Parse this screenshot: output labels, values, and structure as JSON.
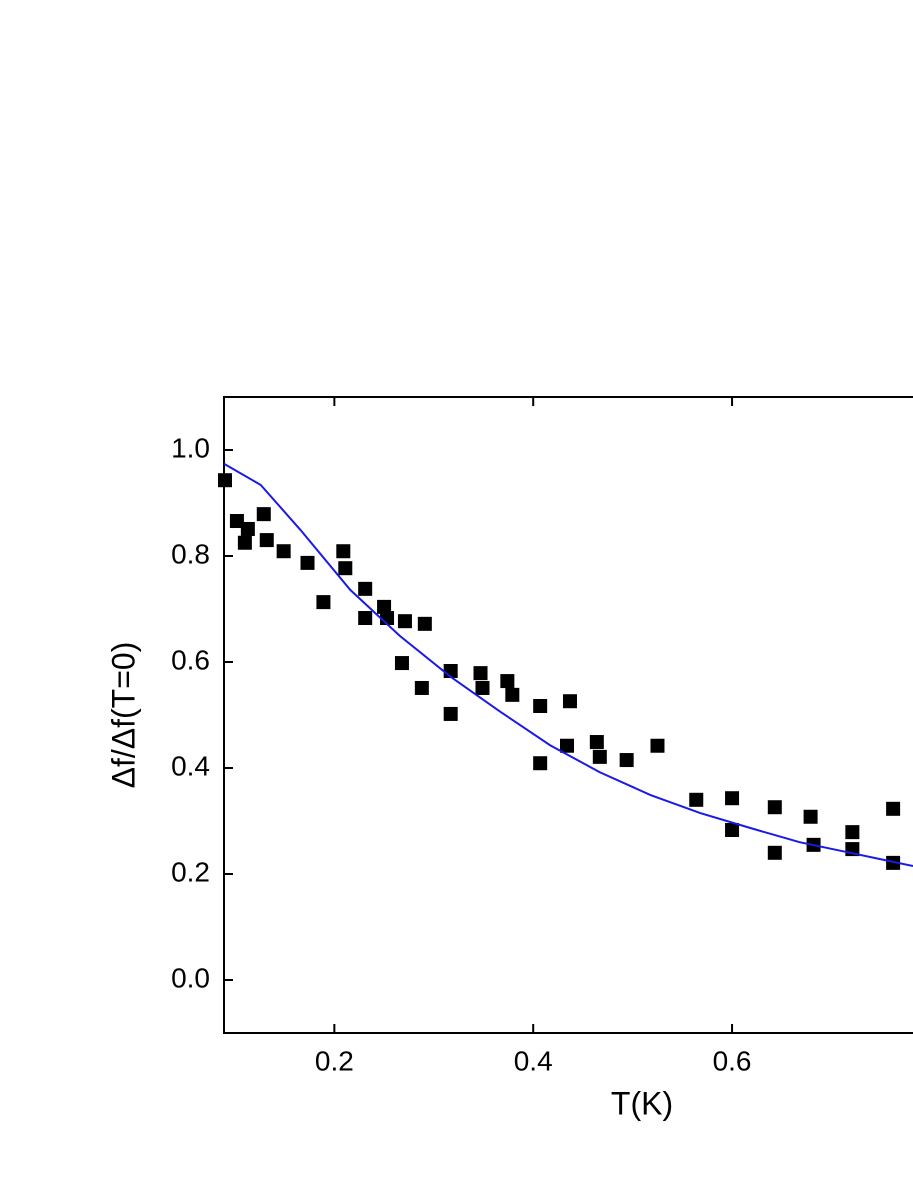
{
  "chart_data": {
    "type": "scatter",
    "xlabel": "T(K)",
    "ylabel": "Δf/Δf(T=0)",
    "xlim": [
      0.089,
      0.782
    ],
    "ylim": [
      -0.1,
      1.1
    ],
    "xticks": [
      0.2,
      0.4,
      0.6
    ],
    "yticks": [
      {
        "value": 0,
        "label": "0.0"
      },
      0.2,
      0.4,
      0.6,
      0.8,
      {
        "value": 1,
        "label": "1.0"
      }
    ],
    "series": [
      {
        "type": "scatter",
        "color": "#000000",
        "x": [
          0.09,
          0.102,
          0.11,
          0.113,
          0.129,
          0.132,
          0.149,
          0.173,
          0.189,
          0.209,
          0.211,
          0.231,
          0.231,
          0.25,
          0.253,
          0.271,
          0.268,
          0.291,
          0.288,
          0.317,
          0.317,
          0.347,
          0.349,
          0.374,
          0.379,
          0.407,
          0.407,
          0.437,
          0.434,
          0.464,
          0.467,
          0.494,
          0.525,
          0.564,
          0.6,
          0.6,
          0.643,
          0.643,
          0.679,
          0.682,
          0.721,
          0.721,
          0.762,
          0.762
        ],
        "values": [
          0.943,
          0.866,
          0.825,
          0.851,
          0.879,
          0.83,
          0.809,
          0.787,
          0.713,
          0.809,
          0.777,
          0.738,
          0.683,
          0.704,
          0.683,
          0.677,
          0.598,
          0.672,
          0.551,
          0.583,
          0.502,
          0.579,
          0.551,
          0.564,
          0.538,
          0.517,
          0.409,
          0.526,
          0.442,
          0.449,
          0.421,
          0.415,
          0.442,
          0.34,
          0.343,
          0.283,
          0.326,
          0.24,
          0.308,
          0.255,
          0.279,
          0.247,
          0.323,
          0.221
        ]
      },
      {
        "type": "line",
        "color": "#1a1ae6",
        "x": [
          0.089,
          0.126,
          0.166,
          0.216,
          0.266,
          0.317,
          0.367,
          0.417,
          0.467,
          0.518,
          0.568,
          0.618,
          0.668,
          0.719,
          0.782
        ],
        "values": [
          0.974,
          0.934,
          0.849,
          0.736,
          0.649,
          0.572,
          0.506,
          0.443,
          0.392,
          0.349,
          0.315,
          0.287,
          0.26,
          0.24,
          0.215
        ]
      }
    ]
  }
}
